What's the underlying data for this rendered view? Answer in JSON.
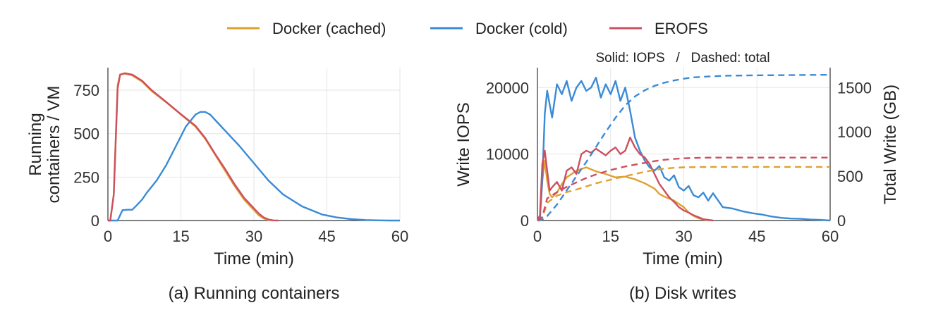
{
  "legend": [
    {
      "name": "Docker (cached)",
      "color": "#E0A030"
    },
    {
      "name": "Docker (cold)",
      "color": "#3A8BD6"
    },
    {
      "name": "EROFS",
      "color": "#CC5060"
    }
  ],
  "chart_data": [
    {
      "type": "line",
      "caption": "(a) Running containers",
      "xlabel": "Time (min)",
      "ylabel": "Running containers / VM",
      "xlim": [
        0,
        60
      ],
      "ylim": [
        0,
        880
      ],
      "xticks": [
        "0",
        "15",
        "30",
        "45",
        "60"
      ],
      "yticks": [
        "0",
        "250",
        "500",
        "750"
      ],
      "grid": true,
      "series": [
        {
          "name": "Docker (cached)",
          "color": "#E0A030",
          "x": [
            0,
            0.5,
            1.2,
            2.0,
            2.5,
            3.5,
            5,
            7,
            9,
            12,
            15,
            18,
            20,
            22,
            24,
            26,
            28,
            30,
            31,
            32,
            33,
            34
          ],
          "y": [
            0,
            0,
            150,
            780,
            840,
            845,
            835,
            800,
            745,
            680,
            610,
            540,
            470,
            380,
            290,
            200,
            120,
            60,
            30,
            12,
            3,
            0
          ]
        },
        {
          "name": "Docker (cold)",
          "color": "#3A8BD6",
          "x": [
            0,
            2,
            3,
            4,
            5,
            6,
            7,
            8,
            10,
            12,
            14,
            16,
            18,
            19,
            20,
            21,
            22,
            24,
            27,
            30,
            33,
            36,
            40,
            44,
            47,
            50,
            53,
            56,
            58,
            60
          ],
          "y": [
            0,
            0,
            60,
            62,
            62,
            90,
            120,
            160,
            230,
            320,
            430,
            540,
            610,
            625,
            625,
            610,
            580,
            520,
            430,
            330,
            230,
            150,
            80,
            35,
            18,
            8,
            3,
            1,
            0,
            0
          ]
        },
        {
          "name": "EROFS",
          "color": "#CC5060",
          "x": [
            0,
            0.5,
            1.2,
            2.0,
            2.5,
            3.5,
            5,
            7,
            9,
            12,
            15,
            18,
            20,
            22,
            24,
            26,
            28,
            30,
            31,
            32,
            33,
            34,
            35
          ],
          "y": [
            0,
            0,
            150,
            760,
            840,
            848,
            840,
            805,
            750,
            682,
            612,
            545,
            475,
            385,
            300,
            210,
            130,
            70,
            40,
            18,
            6,
            1,
            0
          ]
        }
      ]
    },
    {
      "type": "line",
      "caption": "(b) Disk writes",
      "annotation": "Solid: IOPS   /   Dashed: total",
      "xlabel": "Time (min)",
      "ylabel": "Write IOPS",
      "y2label": "Total Write (GB)",
      "xlim": [
        0,
        60
      ],
      "ylim": [
        0,
        23000
      ],
      "y2lim": [
        0,
        1725
      ],
      "xticks": [
        "0",
        "15",
        "30",
        "45",
        "60"
      ],
      "yticks": [
        "0",
        "10000",
        "20000"
      ],
      "y2ticks": [
        "0",
        "500",
        "1000",
        "1500"
      ],
      "grid": true,
      "series": [
        {
          "name": "Docker (cached)",
          "color": "#E0A030",
          "style": "solid",
          "axis": "left",
          "x": [
            0,
            0.5,
            1,
            1.5,
            2,
            2.5,
            3,
            4,
            5,
            6,
            8,
            10,
            12,
            14,
            16,
            18,
            20,
            22,
            24,
            25,
            26,
            28,
            30,
            31,
            32,
            33,
            34,
            35
          ],
          "y": [
            0,
            0,
            6000,
            9000,
            6000,
            4000,
            3500,
            4200,
            5500,
            6500,
            7500,
            8000,
            7400,
            7000,
            6500,
            6600,
            6200,
            5600,
            4800,
            4000,
            3600,
            3000,
            2000,
            1200,
            700,
            350,
            150,
            0
          ]
        },
        {
          "name": "Docker (cold)",
          "color": "#3A8BD6",
          "style": "solid",
          "axis": "left",
          "x": [
            0,
            0.5,
            1,
            1.5,
            2,
            3,
            4,
            5,
            6,
            7,
            8,
            9,
            10,
            11,
            12,
            13,
            14,
            15,
            16,
            17,
            18,
            19,
            20,
            21,
            22,
            23,
            24,
            25,
            26,
            27,
            28,
            29,
            30,
            31,
            32,
            33,
            34,
            35,
            36,
            38,
            40,
            42,
            44,
            46,
            48,
            50,
            52,
            54,
            56,
            58,
            60
          ],
          "y": [
            0,
            500,
            6000,
            16000,
            19500,
            15500,
            20500,
            19000,
            21000,
            18000,
            20000,
            21000,
            19500,
            20000,
            21500,
            18500,
            20500,
            19000,
            21000,
            18000,
            20000,
            16500,
            12500,
            10500,
            9000,
            8000,
            7500,
            8200,
            6500,
            6000,
            6800,
            5000,
            4500,
            5200,
            3800,
            3500,
            4200,
            3000,
            4100,
            2000,
            1800,
            1400,
            1100,
            900,
            600,
            400,
            300,
            250,
            150,
            100,
            0
          ]
        },
        {
          "name": "EROFS",
          "color": "#CC5060",
          "style": "solid",
          "axis": "left",
          "x": [
            0,
            0.5,
            1,
            1.5,
            2,
            2.5,
            3,
            4,
            5,
            6,
            7,
            8,
            9,
            10,
            11,
            12,
            13,
            14,
            15,
            16,
            17,
            18,
            19,
            20,
            21,
            22,
            23,
            24,
            25,
            26,
            27,
            28,
            29,
            30,
            31,
            32,
            33,
            34,
            35,
            36
          ],
          "y": [
            0,
            800,
            8500,
            10500,
            7500,
            4500,
            5000,
            5800,
            4500,
            7500,
            8000,
            7000,
            10000,
            10500,
            10200,
            10800,
            10300,
            9800,
            10500,
            11000,
            10000,
            10500,
            12500,
            11000,
            10000,
            9500,
            8500,
            7000,
            5500,
            4500,
            3500,
            2800,
            2000,
            1500,
            1200,
            800,
            500,
            200,
            100,
            0
          ]
        },
        {
          "name": "Docker (cached) total",
          "color": "#E0A030",
          "style": "dashed",
          "axis": "right",
          "x": [
            0,
            1,
            2,
            4,
            6,
            8,
            10,
            12,
            15,
            18,
            20,
            22,
            24,
            26,
            28,
            30,
            33,
            36,
            40,
            45,
            50,
            55,
            60
          ],
          "y": [
            0,
            30,
            200,
            280,
            320,
            350,
            385,
            420,
            460,
            500,
            525,
            550,
            570,
            585,
            595,
            600,
            603,
            605,
            605,
            605,
            605,
            605,
            605
          ]
        },
        {
          "name": "Docker (cold) total",
          "color": "#3A8BD6",
          "style": "dashed",
          "axis": "right",
          "x": [
            0,
            1,
            2,
            4,
            6,
            8,
            10,
            12,
            14,
            16,
            18,
            20,
            22,
            24,
            26,
            28,
            30,
            32,
            35,
            38,
            40,
            45,
            50,
            55,
            60
          ],
          "y": [
            0,
            10,
            50,
            180,
            340,
            500,
            660,
            830,
            1000,
            1160,
            1300,
            1400,
            1470,
            1520,
            1555,
            1580,
            1600,
            1615,
            1625,
            1632,
            1635,
            1638,
            1640,
            1642,
            1645
          ]
        },
        {
          "name": "EROFS total",
          "color": "#CC5060",
          "style": "dashed",
          "axis": "right",
          "x": [
            0,
            1,
            2,
            4,
            6,
            8,
            10,
            12,
            15,
            18,
            20,
            22,
            24,
            26,
            28,
            30,
            32,
            34,
            36,
            40,
            45,
            50,
            55,
            60
          ],
          "y": [
            0,
            40,
            250,
            320,
            380,
            430,
            480,
            520,
            570,
            610,
            630,
            650,
            670,
            685,
            695,
            702,
            706,
            708,
            710,
            710,
            710,
            710,
            710,
            710
          ]
        }
      ]
    }
  ]
}
